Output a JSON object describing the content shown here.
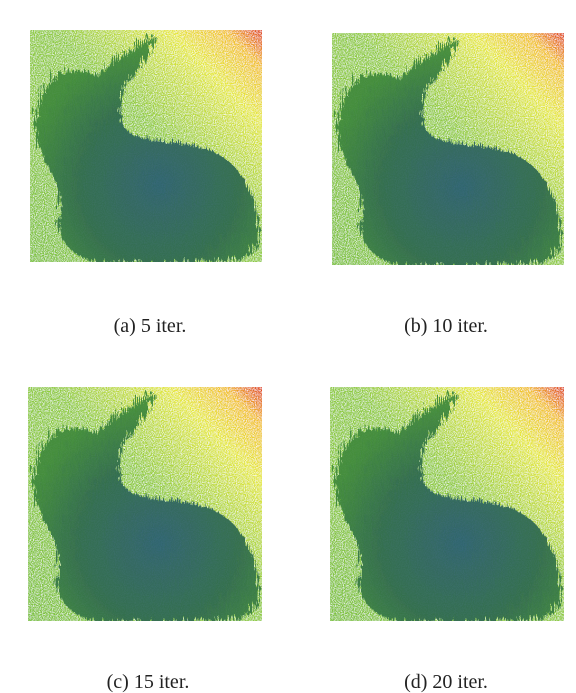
{
  "panels": [
    {
      "caption": "(a) 5 iter."
    },
    {
      "caption": "(b) 10 iter."
    },
    {
      "caption": "(c) 15 iter."
    },
    {
      "caption": "(d) 20 iter."
    }
  ]
}
